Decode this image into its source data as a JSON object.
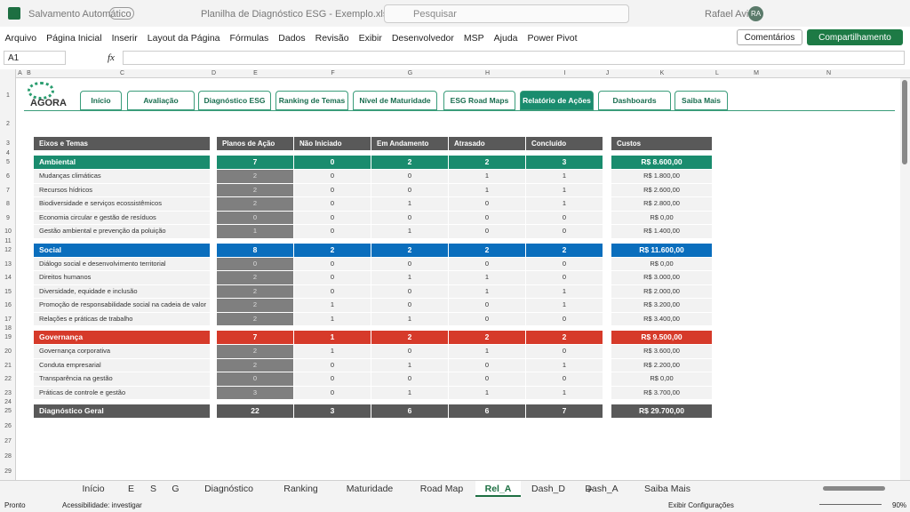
{
  "title_bar": {
    "autosave": "Salvamento Automático",
    "file_name": "Planilha de Diagnóstico ESG - Exemplo.xlsx • Salvo",
    "search": "Pesquisar",
    "user": "Rafael Avila",
    "initials": "RA"
  },
  "ribbon": {
    "menu": [
      "Arquivo",
      "Página Inicial",
      "Inserir",
      "Layout da Página",
      "Fórmulas",
      "Dados",
      "Revisão",
      "Exibir",
      "Desenvolvedor",
      "MSP",
      "Ajuda",
      "Power Pivot"
    ],
    "comments": "Comentários",
    "share": "Compartilhamento"
  },
  "formula_bar": {
    "name_box": "A1",
    "fx": "fx"
  },
  "columns": [
    "A",
    "B",
    "C",
    "D",
    "E",
    "F",
    "G",
    "H",
    "I",
    "J",
    "K",
    "L",
    "M",
    "N"
  ],
  "rows": [
    1,
    2,
    3,
    4,
    5,
    6,
    7,
    8,
    9,
    10,
    11,
    12,
    13,
    14,
    15,
    16,
    17,
    18,
    19,
    20,
    21,
    22,
    23,
    24,
    25,
    26,
    27,
    28,
    29
  ],
  "logo": "AGORA",
  "nav_tabs": [
    "Início",
    "Avaliação",
    "Diagnóstico ESG",
    "Ranking de Temas",
    "Nível de Maturidade",
    "ESG Road Maps",
    "Relatório de Ações",
    "Dashboards",
    "Saiba Mais"
  ],
  "active_nav": 6,
  "report": {
    "headers": [
      "Eixos e Temas",
      "Planos de Ação",
      "Não Iniciado",
      "Em Andamento",
      "Atrasado",
      "Concluído"
    ],
    "cost_header": "Custos",
    "groups": [
      {
        "name": "Ambiental",
        "values": [
          7,
          0,
          2,
          2,
          3
        ],
        "cost": "R$ 8.600,00",
        "items": [
          {
            "name": "Mudanças climáticas",
            "values": [
              2,
              0,
              0,
              1,
              1
            ],
            "cost": "R$ 1.800,00"
          },
          {
            "name": "Recursos hídricos",
            "values": [
              2,
              0,
              0,
              1,
              1
            ],
            "cost": "R$ 2.600,00"
          },
          {
            "name": "Biodiversidade e serviços ecossistêmicos",
            "values": [
              2,
              0,
              1,
              0,
              1
            ],
            "cost": "R$ 2.800,00"
          },
          {
            "name": "Economia circular e gestão de resíduos",
            "values": [
              0,
              0,
              0,
              0,
              0
            ],
            "cost": "R$ 0,00"
          },
          {
            "name": "Gestão ambiental e prevenção da poluição",
            "values": [
              1,
              0,
              1,
              0,
              0
            ],
            "cost": "R$ 1.400,00"
          }
        ]
      },
      {
        "name": "Social",
        "values": [
          8,
          2,
          2,
          2,
          2
        ],
        "cost": "R$ 11.600,00",
        "items": [
          {
            "name": "Diálogo social e desenvolvimento territorial",
            "values": [
              0,
              0,
              0,
              0,
              0
            ],
            "cost": "R$ 0,00"
          },
          {
            "name": "Direitos humanos",
            "values": [
              2,
              0,
              1,
              1,
              0
            ],
            "cost": "R$ 3.000,00"
          },
          {
            "name": "Diversidade, equidade e inclusão",
            "values": [
              2,
              0,
              0,
              1,
              1
            ],
            "cost": "R$ 2.000,00"
          },
          {
            "name": "Promoção de responsabilidade social na cadeia de valor",
            "values": [
              2,
              1,
              0,
              0,
              1
            ],
            "cost": "R$ 3.200,00"
          },
          {
            "name": "Relações e práticas de trabalho",
            "values": [
              2,
              1,
              1,
              0,
              0
            ],
            "cost": "R$ 3.400,00"
          }
        ]
      },
      {
        "name": "Governança",
        "values": [
          7,
          1,
          2,
          2,
          2
        ],
        "cost": "R$ 9.500,00",
        "items": [
          {
            "name": "Governança corporativa",
            "values": [
              2,
              1,
              0,
              1,
              0
            ],
            "cost": "R$ 3.600,00"
          },
          {
            "name": "Conduta empresarial",
            "values": [
              2,
              0,
              1,
              0,
              1
            ],
            "cost": "R$ 2.200,00"
          },
          {
            "name": "Transparência na gestão",
            "values": [
              0,
              0,
              0,
              0,
              0
            ],
            "cost": "R$ 0,00"
          },
          {
            "name": "Práticas de controle e gestão",
            "values": [
              3,
              0,
              1,
              1,
              1
            ],
            "cost": "R$ 3.700,00"
          }
        ]
      }
    ],
    "total": {
      "name": "Diagnóstico Geral",
      "values": [
        22,
        3,
        6,
        6,
        7
      ],
      "cost": "R$ 29.700,00"
    }
  },
  "sheet_tabs": [
    "Início",
    "E",
    "S",
    "G",
    "Diagnóstico",
    "Ranking",
    "Maturidade",
    "Road Map",
    "Rel_A",
    "Dash_D",
    "Dash_A",
    "Saiba Mais"
  ],
  "active_sheet": 8,
  "status": {
    "ready": "Pronto",
    "accessibility": "Acessibilidade: investigar",
    "display_settings": "Exibir Configurações",
    "zoom": "90%"
  }
}
